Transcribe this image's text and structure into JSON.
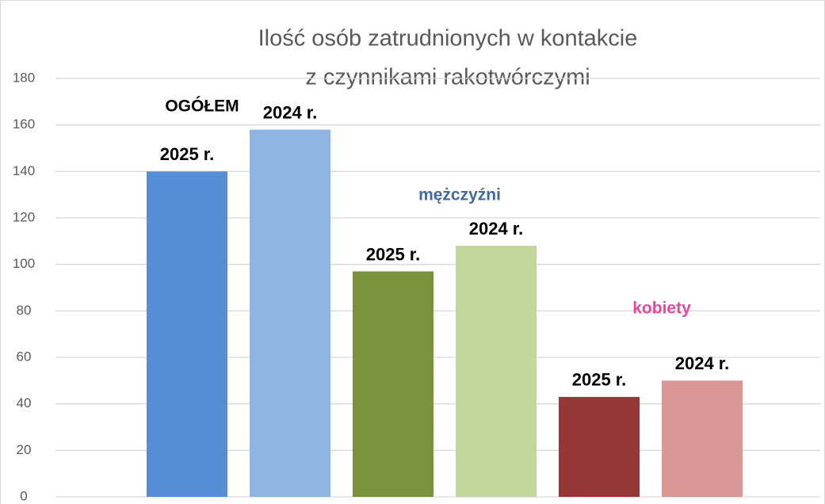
{
  "chart_data": {
    "type": "bar",
    "title": [
      "Ilość osób zatrudnionych w kontakcie",
      "z czynnikami rakotwórczymi"
    ],
    "categories": [
      "2025 r.",
      "2024 r.",
      "2025 r.",
      "2024 r.",
      "2025 r.",
      "2024 r."
    ],
    "values": [
      140,
      158,
      97,
      108,
      43,
      50
    ],
    "colors": [
      "#558ed5",
      "#8eb4e3",
      "#77933c",
      "#c3d69b",
      "#953735",
      "#d99694"
    ],
    "annotations": [
      {
        "text": "OGÓŁEM",
        "color": "#000000"
      },
      {
        "text": "mężczyźni",
        "color": "#44699e"
      },
      {
        "text": "kobiety",
        "color": "#e8479b"
      }
    ],
    "ylim": [
      0,
      180
    ],
    "yticks": [
      0,
      20,
      40,
      60,
      80,
      100,
      120,
      140,
      160,
      180
    ],
    "grid": true
  }
}
